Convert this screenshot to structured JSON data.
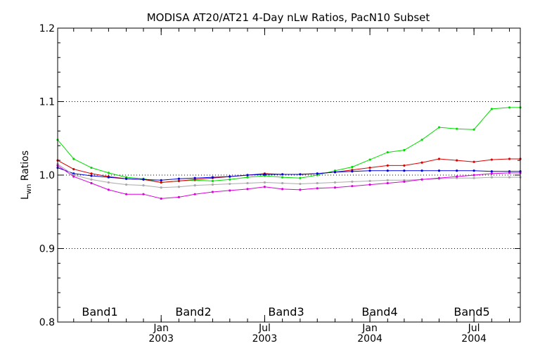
{
  "chart_data": {
    "type": "line",
    "title": "MODISA AT20/AT21 4-Day nLw Ratios, PacN10 Subset",
    "ylabel_main": "L",
    "ylabel_sub": "wn",
    "ylabel_rest": " Ratios",
    "ylim": [
      0.8,
      1.2
    ],
    "yticks": [
      0.8,
      0.9,
      1.0,
      1.1,
      1.2
    ],
    "ytick_labels": [
      "0.8",
      "0.9",
      "1.0",
      "1.1",
      "1.2"
    ],
    "grid_y": [
      0.9,
      1.0,
      1.1
    ],
    "xlim": [
      "2002-07-04",
      "2004-09-20"
    ],
    "xticks": [
      {
        "date": "2003-01-01",
        "month": "Jan",
        "year": "2003"
      },
      {
        "date": "2003-07-01",
        "month": "Jul",
        "year": "2003"
      },
      {
        "date": "2004-01-01",
        "month": "Jan",
        "year": "2004"
      },
      {
        "date": "2004-07-01",
        "month": "Jul",
        "year": "2004"
      }
    ],
    "x": [
      "2002-07-04",
      "2002-08-01",
      "2002-09-01",
      "2002-10-01",
      "2002-11-01",
      "2002-12-01",
      "2003-01-01",
      "2003-02-01",
      "2003-03-01",
      "2003-04-01",
      "2003-05-01",
      "2003-06-01",
      "2003-07-01",
      "2003-08-01",
      "2003-09-01",
      "2003-10-01",
      "2003-11-01",
      "2003-12-01",
      "2004-01-01",
      "2004-02-01",
      "2004-03-01",
      "2004-04-01",
      "2004-05-01",
      "2004-06-01",
      "2004-07-01",
      "2004-08-01",
      "2004-09-01",
      "2004-09-20"
    ],
    "series": [
      {
        "name": "Band1",
        "color": "#00dd00",
        "values": [
          1.048,
          1.022,
          1.01,
          1.003,
          0.997,
          0.995,
          0.99,
          0.992,
          0.993,
          0.992,
          0.994,
          0.997,
          0.999,
          0.997,
          0.996,
          1.0,
          1.006,
          1.011,
          1.021,
          1.031,
          1.034,
          1.048,
          1.065,
          1.063,
          1.062,
          1.09,
          1.092,
          1.092
        ]
      },
      {
        "name": "Band2",
        "color": "#dd0000",
        "values": [
          1.02,
          1.008,
          1.002,
          0.998,
          0.995,
          0.994,
          0.99,
          0.992,
          0.994,
          0.996,
          0.998,
          1.0,
          1.002,
          1.001,
          1.001,
          1.002,
          1.004,
          1.007,
          1.01,
          1.013,
          1.013,
          1.017,
          1.022,
          1.02,
          1.018,
          1.021,
          1.022,
          1.022
        ]
      },
      {
        "name": "Band3",
        "color": "#0000dd",
        "values": [
          1.01,
          1.002,
          0.999,
          0.997,
          0.995,
          0.994,
          0.993,
          0.995,
          0.996,
          0.997,
          0.998,
          1.0,
          1.001,
          1.001,
          1.001,
          1.002,
          1.004,
          1.005,
          1.006,
          1.006,
          1.006,
          1.006,
          1.006,
          1.006,
          1.006,
          1.005,
          1.005,
          1.005
        ]
      },
      {
        "name": "Band4",
        "color": "#aaaaaa",
        "values": [
          1.015,
          1.0,
          0.994,
          0.99,
          0.987,
          0.986,
          0.983,
          0.984,
          0.986,
          0.987,
          0.988,
          0.989,
          0.99,
          0.989,
          0.988,
          0.989,
          0.99,
          0.991,
          0.992,
          0.993,
          0.993,
          0.994,
          0.995,
          0.996,
          0.996,
          0.997,
          0.997,
          0.997
        ]
      },
      {
        "name": "Band5",
        "color": "#dd00dd",
        "values": [
          1.013,
          0.998,
          0.989,
          0.98,
          0.974,
          0.974,
          0.968,
          0.97,
          0.974,
          0.977,
          0.979,
          0.981,
          0.984,
          0.981,
          0.98,
          0.982,
          0.983,
          0.985,
          0.987,
          0.989,
          0.991,
          0.994,
          0.996,
          0.998,
          1.0,
          1.002,
          1.003,
          1.003
        ]
      }
    ],
    "legend": [
      "Band1",
      "Band2",
      "Band3",
      "Band4",
      "Band5"
    ]
  }
}
